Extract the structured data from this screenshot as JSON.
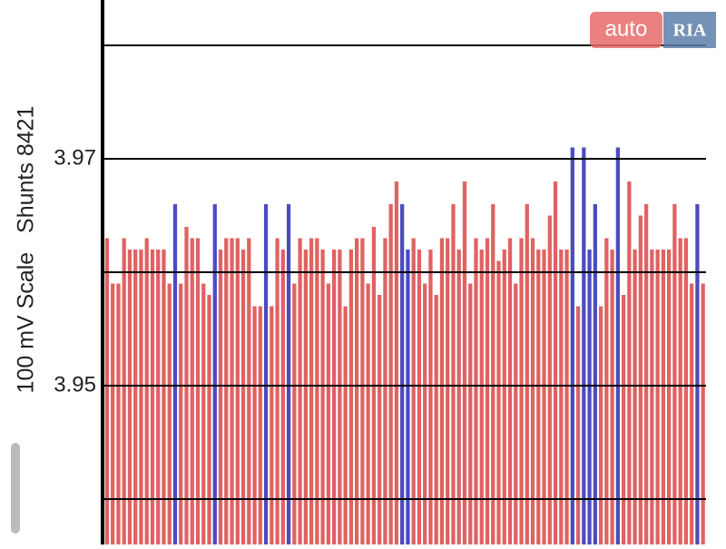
{
  "chart_data": {
    "type": "bar",
    "y_label": "100 mV Scale   Shunts 8421",
    "values": [
      3.963,
      3.959,
      3.959,
      3.963,
      3.962,
      3.962,
      3.962,
      3.963,
      3.962,
      3.962,
      3.962,
      3.959,
      3.966,
      3.959,
      3.964,
      3.963,
      3.963,
      3.959,
      3.958,
      3.966,
      3.962,
      3.963,
      3.963,
      3.963,
      3.962,
      3.963,
      3.957,
      3.957,
      3.966,
      3.957,
      3.963,
      3.962,
      3.966,
      3.959,
      3.963,
      3.962,
      3.963,
      3.963,
      3.962,
      3.959,
      3.962,
      3.962,
      3.957,
      3.962,
      3.963,
      3.963,
      3.959,
      3.964,
      3.958,
      3.963,
      3.966,
      3.968,
      3.966,
      3.962,
      3.963,
      3.962,
      3.959,
      3.962,
      3.958,
      3.963,
      3.963,
      3.966,
      3.962,
      3.968,
      3.959,
      3.963,
      3.962,
      3.963,
      3.966,
      3.961,
      3.962,
      3.963,
      3.959,
      3.963,
      3.966,
      3.963,
      3.962,
      3.962,
      3.965,
      3.968,
      3.962,
      3.962,
      3.971,
      3.957,
      3.971,
      3.962,
      3.966,
      3.957,
      3.963,
      3.962,
      3.971,
      3.958,
      3.968,
      3.962,
      3.965,
      3.966,
      3.962,
      3.962,
      3.962,
      3.962,
      3.966,
      3.963,
      3.963,
      3.959,
      3.966,
      3.959
    ],
    "color": "#e06262",
    "highlight_color": "#4b4bbf",
    "highlighted": [
      12,
      19,
      28,
      32,
      52,
      53,
      82,
      84,
      85,
      86,
      90,
      104
    ],
    "ylim": [
      3.936,
      3.984
    ],
    "yticks": [
      3.95,
      3.97
    ],
    "grid_lines": [
      3.94,
      3.95,
      3.96,
      3.97,
      3.98
    ]
  },
  "watermark": {
    "left": "auto",
    "right": "RIA"
  }
}
